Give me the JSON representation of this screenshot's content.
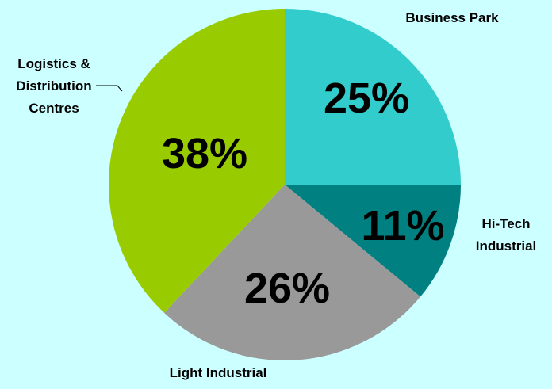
{
  "chart_data": {
    "type": "pie",
    "categories": [
      "Business Park",
      "Hi-Tech Industrial",
      "Light Industrial",
      "Logistics & Distribution Centres"
    ],
    "values": [
      25,
      11,
      26,
      38
    ],
    "value_labels": [
      "25%",
      "11%",
      "26%",
      "38%"
    ],
    "label_lines": [
      [
        "Business Park"
      ],
      [
        "Hi-Tech",
        "Industrial"
      ],
      [
        "Light Industrial"
      ],
      [
        "Logistics &",
        "Distribution",
        "Centres"
      ]
    ],
    "colors": [
      "#33cccc",
      "#008080",
      "#999999",
      "#99cc00"
    ],
    "background": "#ccffff",
    "start": "12 o'clock, clockwise",
    "legend": "none"
  }
}
